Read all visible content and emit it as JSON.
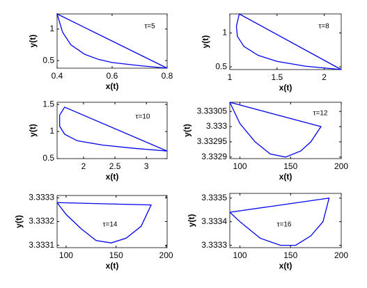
{
  "chart_data": [
    {
      "type": "line",
      "xlabel": "x(t)",
      "ylabel": "y(t)",
      "annotation": "τ=5",
      "x": [
        0.8,
        0.4,
        0.42,
        0.45,
        0.5,
        0.55,
        0.6,
        0.7,
        0.8
      ],
      "series": [
        {
          "color": "#0000ee",
          "values": [
            0.38,
            1.24,
            0.95,
            0.75,
            0.6,
            0.52,
            0.47,
            0.42,
            0.38
          ]
        }
      ],
      "xlim": [
        0.4,
        0.8
      ],
      "ylim": [
        0.38,
        1.24
      ],
      "xticks": [
        0.4,
        0.6,
        0.8
      ],
      "yticks": [
        0.5,
        1
      ]
    },
    {
      "type": "line",
      "xlabel": "x(t)",
      "ylabel": "y(t)",
      "annotation": "τ=8",
      "x": [
        2.18,
        1.1,
        1.07,
        1.08,
        1.15,
        1.3,
        1.5,
        1.8,
        2.18
      ],
      "series": [
        {
          "color": "#0000ee",
          "values": [
            0.46,
            1.28,
            1.1,
            0.95,
            0.8,
            0.67,
            0.58,
            0.51,
            0.46
          ]
        }
      ],
      "xlim": [
        1,
        2.18
      ],
      "ylim": [
        0.46,
        1.28
      ],
      "xticks": [
        1,
        1.5,
        2
      ],
      "yticks": [
        0.5,
        1
      ]
    },
    {
      "type": "line",
      "xlabel": "x(t)",
      "ylabel": "y(t)",
      "annotation": "τ=10",
      "x": [
        3.33,
        1.7,
        1.62,
        1.62,
        1.7,
        1.9,
        2.3,
        2.8,
        3.33
      ],
      "series": [
        {
          "color": "#0000ee",
          "values": [
            0.64,
            1.45,
            1.3,
            1.1,
            0.95,
            0.83,
            0.75,
            0.69,
            0.64
          ]
        }
      ],
      "xlim": [
        1.58,
        3.33
      ],
      "ylim": [
        0.5,
        1.54
      ],
      "xticks": [
        2,
        2.5,
        3
      ],
      "yticks": [
        0.5,
        1,
        1.5
      ]
    },
    {
      "type": "line",
      "xlabel": "x(t)",
      "ylabel": "y(t)",
      "annotation": "τ=12",
      "x": [
        90,
        180,
        170,
        160,
        145,
        130,
        115,
        100,
        90
      ],
      "series": [
        {
          "color": "#0000ee",
          "values": [
            3.33308,
            3.333,
            3.33295,
            3.33292,
            3.3329,
            3.33291,
            3.33295,
            3.33301,
            3.33308
          ]
        }
      ],
      "xlim": [
        90,
        200
      ],
      "ylim": [
        3.332895,
        3.33308
      ],
      "xticks": [
        100,
        150,
        200
      ],
      "yticks": [
        3.3329,
        3.33295,
        3.333,
        3.33305
      ]
    },
    {
      "type": "line",
      "xlabel": "x(t)",
      "ylabel": "y(t)",
      "annotation": "τ=14",
      "x": [
        91,
        185,
        175,
        160,
        145,
        130,
        115,
        100,
        91
      ],
      "series": [
        {
          "color": "#0000ee",
          "values": [
            3.33328,
            3.33327,
            3.33318,
            3.33313,
            3.33311,
            3.33312,
            3.33317,
            3.33323,
            3.33328
          ]
        }
      ],
      "xlim": [
        91,
        201
      ],
      "ylim": [
        3.33309,
        3.33331
      ],
      "xticks": [
        100,
        150,
        200
      ],
      "yticks": [
        3.3331,
        3.3332,
        3.3333
      ]
    },
    {
      "type": "line",
      "xlabel": "x(t)",
      "ylabel": "y(t)",
      "annotation": "τ=16",
      "x": [
        90,
        188,
        182,
        170,
        155,
        140,
        120,
        100,
        90
      ],
      "series": [
        {
          "color": "#0000ee",
          "values": [
            3.33344,
            3.3335,
            3.3334,
            3.33334,
            3.3333,
            3.3333,
            3.33333,
            3.3334,
            3.33344
          ]
        }
      ],
      "xlim": [
        90,
        200
      ],
      "ylim": [
        3.33329,
        3.33352
      ],
      "xticks": [
        100,
        150,
        200
      ],
      "yticks": [
        3.3333,
        3.3334,
        3.3335
      ]
    }
  ]
}
